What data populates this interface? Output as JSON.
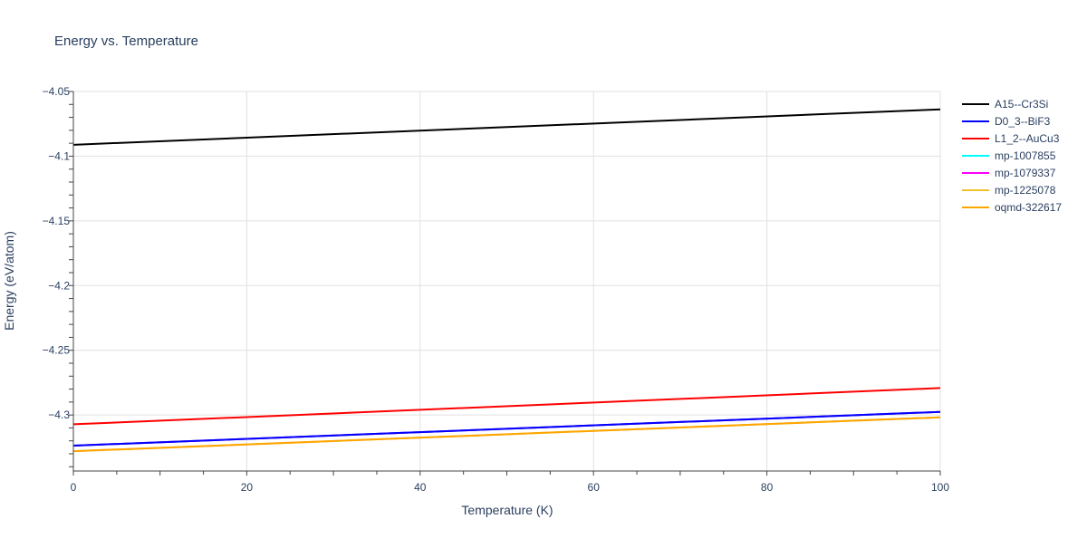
{
  "chart_data": {
    "type": "line",
    "title": "Energy vs. Temperature",
    "xlabel": "Temperature (K)",
    "ylabel": "Energy (eV/atom)",
    "xlim": [
      0,
      100
    ],
    "ylim": [
      -4.3433,
      -4.05
    ],
    "xticks": [
      0,
      20,
      40,
      60,
      80,
      100
    ],
    "xtick_labels": [
      "0",
      "20",
      "40",
      "60",
      "80",
      "100"
    ],
    "yticks": [
      -4.05,
      -4.1,
      -4.15,
      -4.2,
      -4.25,
      -4.3
    ],
    "ytick_labels": [
      "−4.05",
      "−4.1",
      "−4.15",
      "−4.2",
      "−4.25",
      "−4.3"
    ],
    "grid": true,
    "legend_position": "right",
    "series": [
      {
        "name": "mp-1007855",
        "color": "#00ffff",
        "x": [
          0,
          100
        ],
        "y": [
          -4.3237,
          -4.2976
        ]
      },
      {
        "name": "mp-1079337",
        "color": "#ff00ff",
        "x": [
          0,
          100
        ],
        "y": [
          -4.3237,
          -4.2976
        ]
      },
      {
        "name": "mp-1225078",
        "color": "#f0c030",
        "x": [
          0,
          100
        ],
        "y": [
          -4.328,
          -4.3018
        ]
      },
      {
        "name": "A15--Cr3Si",
        "color": "#000000",
        "x": [
          0,
          100
        ],
        "y": [
          -4.0912,
          -4.0638
        ]
      },
      {
        "name": "D0_3--BiF3",
        "color": "#0000ff",
        "x": [
          0,
          100
        ],
        "y": [
          -4.3237,
          -4.2976
        ]
      },
      {
        "name": "L1_2--AuCu3",
        "color": "#ff0000",
        "x": [
          0,
          100
        ],
        "y": [
          -4.3072,
          -4.2792
        ]
      },
      {
        "name": "oqmd-322617",
        "color": "#ffa500",
        "x": [
          0,
          100
        ],
        "y": [
          -4.328,
          -4.3018
        ]
      }
    ],
    "legend_order": [
      "A15--Cr3Si",
      "D0_3--BiF3",
      "L1_2--AuCu3",
      "mp-1007855",
      "mp-1079337",
      "mp-1225078",
      "oqmd-322617"
    ]
  }
}
